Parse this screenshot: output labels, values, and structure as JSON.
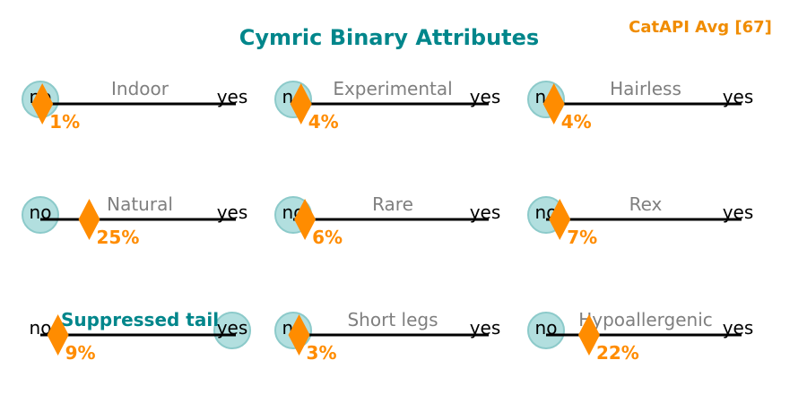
{
  "chart_data": {
    "type": "binary-slider-grid",
    "title": "Cymric Binary Attributes",
    "corner_label": "CatAPI Avg [67]",
    "scale": {
      "min": 0,
      "max": 100,
      "left_label": "no",
      "right_label": "yes"
    },
    "attributes": [
      {
        "name": "Indoor",
        "value": 1,
        "value_label": "1%",
        "breed_value": "no",
        "highlight": false
      },
      {
        "name": "Experimental",
        "value": 4,
        "value_label": "4%",
        "breed_value": "no",
        "highlight": false
      },
      {
        "name": "Hairless",
        "value": 4,
        "value_label": "4%",
        "breed_value": "no",
        "highlight": false
      },
      {
        "name": "Natural",
        "value": 25,
        "value_label": "25%",
        "breed_value": "no",
        "highlight": false
      },
      {
        "name": "Rare",
        "value": 6,
        "value_label": "6%",
        "breed_value": "no",
        "highlight": false
      },
      {
        "name": "Rex",
        "value": 7,
        "value_label": "7%",
        "breed_value": "no",
        "highlight": false
      },
      {
        "name": "Suppressed tail",
        "value": 9,
        "value_label": "9%",
        "breed_value": "yes",
        "highlight": true
      },
      {
        "name": "Short legs",
        "value": 3,
        "value_label": "3%",
        "breed_value": "no",
        "highlight": false
      },
      {
        "name": "Hypoallergenic",
        "value": 22,
        "value_label": "22%",
        "breed_value": "no",
        "highlight": false
      }
    ]
  },
  "colors": {
    "title": "#00868b",
    "accent": "#ff8c00",
    "corner": "#f08c00",
    "label": "#7f7f7f",
    "highlight_label": "#00868b",
    "circle_fill": "#b2dfdf",
    "circle_stroke": "#8ccaca",
    "line": "#000000"
  }
}
